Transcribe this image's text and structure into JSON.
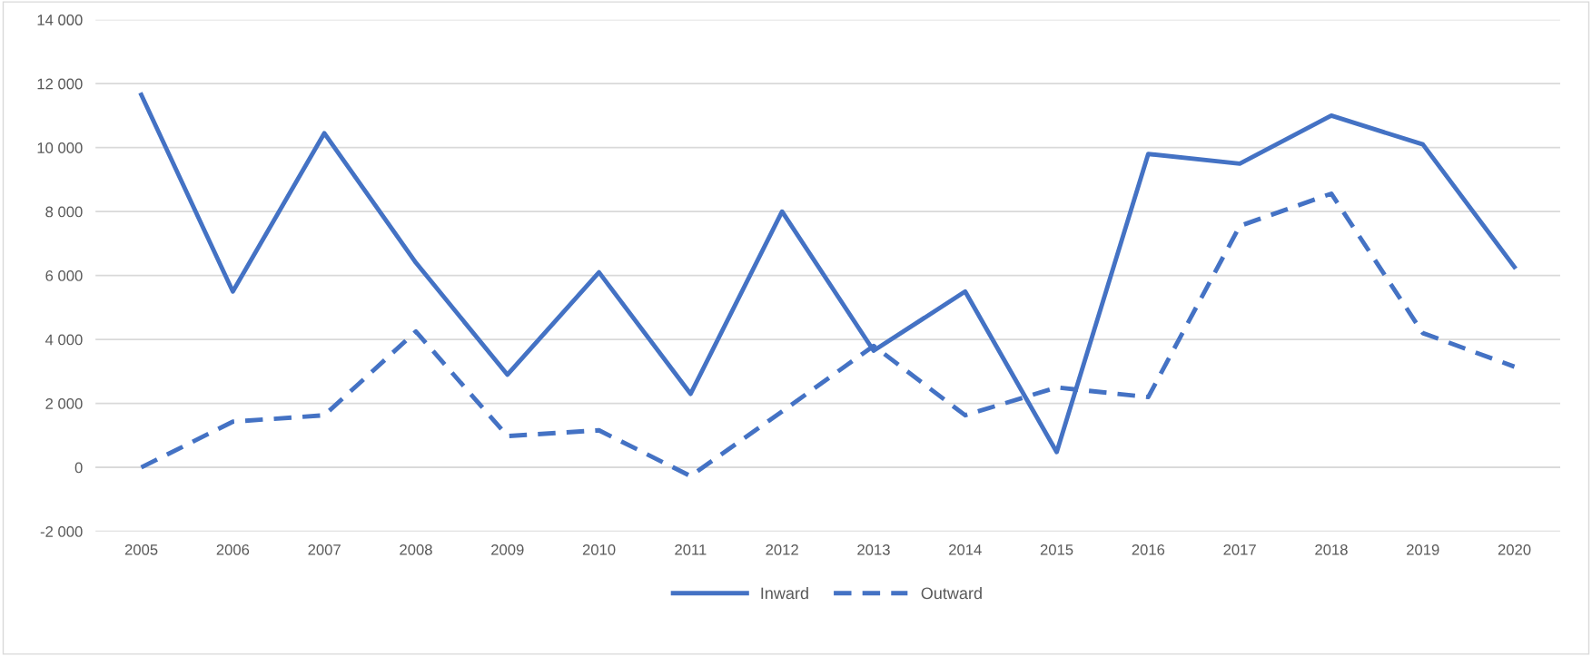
{
  "chart_data": {
    "type": "line",
    "categories": [
      "2005",
      "2006",
      "2007",
      "2008",
      "2009",
      "2010",
      "2011",
      "2012",
      "2013",
      "2014",
      "2015",
      "2016",
      "2017",
      "2018",
      "2019",
      "2020"
    ],
    "series": [
      {
        "name": "Inward",
        "color": "#4472c4",
        "line_style": "solid",
        "values": [
          11650,
          5500,
          10450,
          6400,
          2900,
          6100,
          2300,
          8000,
          3650,
          5500,
          480,
          9800,
          9500,
          11000,
          10100,
          6270
        ]
      },
      {
        "name": "Outward",
        "color": "#4472c4",
        "line_style": "dashed",
        "values": [
          0,
          1430,
          1630,
          4250,
          980,
          1160,
          -270,
          1750,
          3800,
          1630,
          2500,
          2200,
          7550,
          8560,
          4200,
          3150
        ]
      }
    ],
    "ylim": [
      -2000,
      14000
    ],
    "yticks": [
      {
        "value": -2000,
        "label": "-2 000"
      },
      0,
      {
        "value": 2000,
        "label": "2 000"
      },
      {
        "value": 4000,
        "label": "4 000"
      },
      {
        "value": 6000,
        "label": "6 000"
      },
      {
        "value": 8000,
        "label": "8 000"
      },
      {
        "value": 10000,
        "label": "10 000"
      },
      {
        "value": 12000,
        "label": "12 000"
      },
      {
        "value": 14000,
        "label": "14 000"
      }
    ],
    "grid": "y",
    "legend": "bottom",
    "marker": "none"
  }
}
